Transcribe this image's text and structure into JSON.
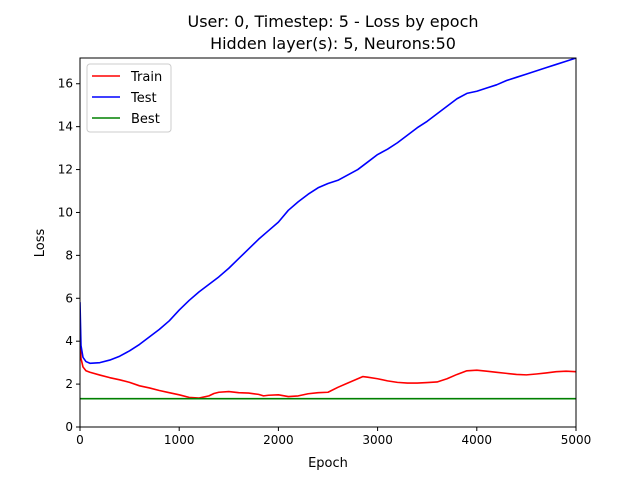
{
  "chart_data": {
    "type": "line",
    "title_line1": "User: 0, Timestep: 5 - Loss by epoch",
    "title_line2": "Hidden layer(s): 5, Neurons:50",
    "xlabel": "Epoch",
    "ylabel": "Loss",
    "xlim": [
      0,
      5000
    ],
    "ylim": [
      0,
      17.2
    ],
    "xticks": [
      0,
      1000,
      2000,
      3000,
      4000,
      5000
    ],
    "xtick_labels": [
      "0",
      "1000",
      "2000",
      "3000",
      "4000",
      "5000"
    ],
    "yticks": [
      0,
      2,
      4,
      6,
      8,
      10,
      12,
      14,
      16
    ],
    "ytick_labels": [
      "0",
      "2",
      "4",
      "6",
      "8",
      "10",
      "12",
      "14",
      "16"
    ],
    "grid": false,
    "legend_position": "top-left",
    "series": [
      {
        "name": "Train",
        "color": "#ff0000",
        "points": [
          [
            0,
            5.0
          ],
          [
            10,
            3.2
          ],
          [
            30,
            2.8
          ],
          [
            60,
            2.62
          ],
          [
            100,
            2.55
          ],
          [
            200,
            2.42
          ],
          [
            300,
            2.3
          ],
          [
            400,
            2.2
          ],
          [
            500,
            2.08
          ],
          [
            600,
            1.92
          ],
          [
            700,
            1.82
          ],
          [
            800,
            1.7
          ],
          [
            900,
            1.6
          ],
          [
            1000,
            1.5
          ],
          [
            1100,
            1.38
          ],
          [
            1200,
            1.35
          ],
          [
            1300,
            1.45
          ],
          [
            1350,
            1.56
          ],
          [
            1400,
            1.62
          ],
          [
            1500,
            1.65
          ],
          [
            1600,
            1.6
          ],
          [
            1700,
            1.58
          ],
          [
            1800,
            1.52
          ],
          [
            1850,
            1.45
          ],
          [
            1900,
            1.48
          ],
          [
            2000,
            1.5
          ],
          [
            2100,
            1.42
          ],
          [
            2200,
            1.45
          ],
          [
            2300,
            1.55
          ],
          [
            2400,
            1.6
          ],
          [
            2500,
            1.62
          ],
          [
            2600,
            1.85
          ],
          [
            2700,
            2.05
          ],
          [
            2800,
            2.25
          ],
          [
            2850,
            2.35
          ],
          [
            2900,
            2.32
          ],
          [
            3000,
            2.25
          ],
          [
            3100,
            2.15
          ],
          [
            3200,
            2.08
          ],
          [
            3300,
            2.05
          ],
          [
            3400,
            2.05
          ],
          [
            3500,
            2.07
          ],
          [
            3600,
            2.1
          ],
          [
            3700,
            2.25
          ],
          [
            3800,
            2.45
          ],
          [
            3900,
            2.62
          ],
          [
            4000,
            2.65
          ],
          [
            4100,
            2.6
          ],
          [
            4200,
            2.55
          ],
          [
            4300,
            2.5
          ],
          [
            4400,
            2.45
          ],
          [
            4500,
            2.43
          ],
          [
            4600,
            2.47
          ],
          [
            4700,
            2.52
          ],
          [
            4800,
            2.58
          ],
          [
            4900,
            2.6
          ],
          [
            5000,
            2.58
          ]
        ]
      },
      {
        "name": "Test",
        "color": "#0000ff",
        "points": [
          [
            0,
            5.8
          ],
          [
            10,
            3.8
          ],
          [
            30,
            3.25
          ],
          [
            60,
            3.05
          ],
          [
            100,
            2.97
          ],
          [
            200,
            3.0
          ],
          [
            300,
            3.12
          ],
          [
            400,
            3.3
          ],
          [
            500,
            3.55
          ],
          [
            600,
            3.85
          ],
          [
            700,
            4.2
          ],
          [
            800,
            4.55
          ],
          [
            900,
            4.95
          ],
          [
            1000,
            5.45
          ],
          [
            1100,
            5.9
          ],
          [
            1200,
            6.3
          ],
          [
            1300,
            6.65
          ],
          [
            1400,
            7.0
          ],
          [
            1500,
            7.4
          ],
          [
            1600,
            7.85
          ],
          [
            1700,
            8.3
          ],
          [
            1800,
            8.75
          ],
          [
            1900,
            9.15
          ],
          [
            2000,
            9.55
          ],
          [
            2100,
            10.1
          ],
          [
            2200,
            10.5
          ],
          [
            2300,
            10.85
          ],
          [
            2400,
            11.15
          ],
          [
            2500,
            11.35
          ],
          [
            2600,
            11.5
          ],
          [
            2700,
            11.75
          ],
          [
            2800,
            12.0
          ],
          [
            2900,
            12.35
          ],
          [
            3000,
            12.7
          ],
          [
            3100,
            12.95
          ],
          [
            3200,
            13.25
          ],
          [
            3300,
            13.6
          ],
          [
            3400,
            13.95
          ],
          [
            3500,
            14.25
          ],
          [
            3600,
            14.6
          ],
          [
            3700,
            14.95
          ],
          [
            3800,
            15.3
          ],
          [
            3900,
            15.55
          ],
          [
            4000,
            15.65
          ],
          [
            4100,
            15.8
          ],
          [
            4200,
            15.95
          ],
          [
            4300,
            16.15
          ],
          [
            4400,
            16.3
          ],
          [
            4500,
            16.45
          ],
          [
            4600,
            16.6
          ],
          [
            4700,
            16.75
          ],
          [
            4800,
            16.9
          ],
          [
            4900,
            17.05
          ],
          [
            5000,
            17.2
          ]
        ]
      },
      {
        "name": "Best",
        "color": "#008000",
        "points": [
          [
            0,
            1.32
          ],
          [
            5000,
            1.32
          ]
        ]
      }
    ]
  }
}
